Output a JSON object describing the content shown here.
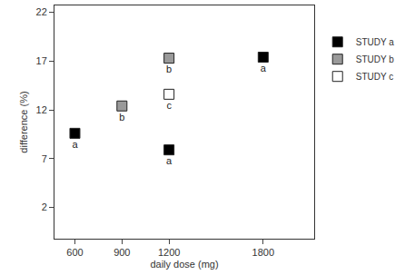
{
  "chart_data": {
    "type": "scatter",
    "x_label": "daily dose (mg)",
    "y_label": "difference (%)",
    "xlim": [
      470,
      2125
    ],
    "xticks": [
      600,
      900,
      1200,
      1800
    ],
    "ylim": [
      -1.2,
      22.7
    ],
    "yticks": [
      2,
      7,
      12,
      17,
      22
    ],
    "grid": false,
    "legend": "right",
    "series": [
      {
        "name": "STUDY a",
        "color": "#000000",
        "marker": "square",
        "x": [
          600,
          1200,
          1800
        ],
        "values": [
          9.6,
          7.9,
          17.4
        ],
        "point_labels": [
          "a",
          "a",
          "a"
        ]
      },
      {
        "name": "STUDY b",
        "color": "#9a9a9a",
        "marker": "square",
        "x": [
          900,
          1200
        ],
        "values": [
          12.4,
          17.3
        ],
        "point_labels": [
          "b",
          "b"
        ]
      },
      {
        "name": "STUDY c",
        "color": "#ffffff",
        "marker": "square",
        "x": [
          1200
        ],
        "values": [
          13.6
        ],
        "point_labels": [
          "c"
        ]
      }
    ]
  }
}
